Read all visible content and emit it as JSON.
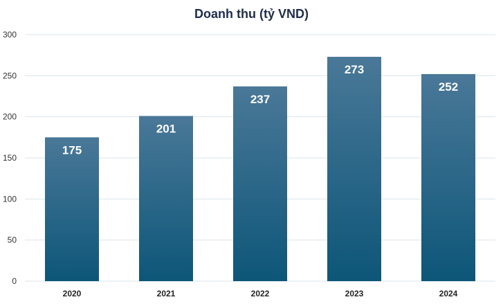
{
  "chart_data": {
    "type": "bar",
    "title": "Doanh thu (tỷ VND)",
    "xlabel": "",
    "ylabel": "",
    "categories": [
      "2020",
      "2021",
      "2022",
      "2023",
      "2024"
    ],
    "values": [
      175,
      201,
      237,
      273,
      252
    ],
    "data_labels": [
      "175",
      "201",
      "237",
      "273",
      "252"
    ],
    "ylim": [
      0,
      300
    ],
    "yticks": [
      0,
      50,
      100,
      150,
      200,
      250,
      300
    ],
    "grid": true,
    "legend": "none",
    "colors": {
      "bar_top": "#4a7898",
      "bar_bottom": "#0d5678",
      "label": "#ffffff",
      "grid": "#d9e4ea"
    }
  }
}
